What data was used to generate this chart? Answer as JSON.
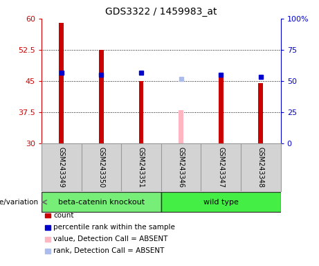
{
  "title": "GDS3322 / 1459983_at",
  "samples": [
    "GSM243349",
    "GSM243350",
    "GSM243351",
    "GSM243346",
    "GSM243347",
    "GSM243348"
  ],
  "bar_values": [
    59.0,
    52.5,
    45.0,
    null,
    47.0,
    44.5
  ],
  "bar_color": "#cc0000",
  "absent_bar_values": [
    null,
    null,
    null,
    38.0,
    null,
    null
  ],
  "absent_bar_color": "#ffb6c1",
  "rank_values": [
    47.0,
    46.5,
    47.0,
    null,
    46.5,
    46.0
  ],
  "rank_color": "#0000cc",
  "absent_rank_values": [
    null,
    null,
    null,
    45.5,
    null,
    null
  ],
  "absent_rank_color": "#aabbee",
  "ylim_left": [
    30,
    60
  ],
  "ylim_right": [
    0,
    100
  ],
  "yticks_left": [
    30,
    37.5,
    45,
    52.5,
    60
  ],
  "yticks_right": [
    0,
    25,
    50,
    75,
    100
  ],
  "left_axis_color": "#cc0000",
  "right_axis_color": "#0000cc",
  "plot_bg": "#ffffff",
  "label_bg": "#d3d3d3",
  "group_info": [
    {
      "name": "beta-catenin knockout",
      "start": 0,
      "end": 3,
      "color": "#77ee77"
    },
    {
      "name": "wild type",
      "start": 3,
      "end": 6,
      "color": "#44ee44"
    }
  ],
  "genotype_label": "genotype/variation",
  "legend_items": [
    {
      "label": "count",
      "color": "#cc0000"
    },
    {
      "label": "percentile rank within the sample",
      "color": "#0000cc"
    },
    {
      "label": "value, Detection Call = ABSENT",
      "color": "#ffb6c1"
    },
    {
      "label": "rank, Detection Call = ABSENT",
      "color": "#aabbee"
    }
  ],
  "bar_width": 0.12,
  "rank_marker_size": 5,
  "title_fontsize": 10,
  "tick_fontsize": 8,
  "label_fontsize": 7.5
}
